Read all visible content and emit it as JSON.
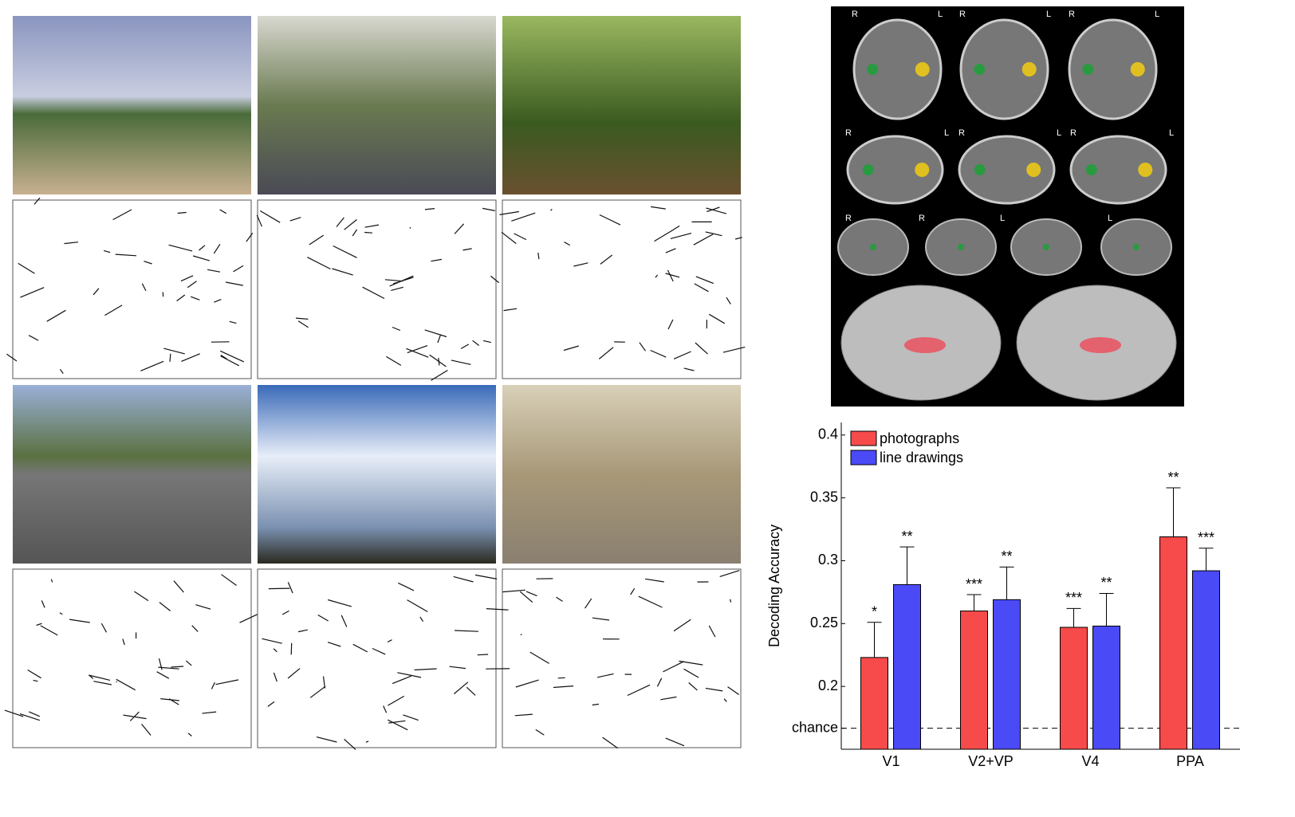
{
  "chart_data": {
    "type": "bar",
    "ylabel": "Decoding Accuracy",
    "categories": [
      "V1",
      "V2+VP",
      "V4",
      "PPA"
    ],
    "series": [
      {
        "name": "photographs",
        "color": "#f74a4a",
        "values": [
          0.223,
          0.26,
          0.247,
          0.319
        ],
        "errors": [
          0.028,
          0.013,
          0.015,
          0.039
        ],
        "significance": [
          "*",
          "***",
          "***",
          "**"
        ]
      },
      {
        "name": "line drawings",
        "color": "#4a4af7",
        "values": [
          0.281,
          0.269,
          0.248,
          0.292
        ],
        "errors": [
          0.03,
          0.026,
          0.026,
          0.018
        ],
        "significance": [
          "**",
          "**",
          "**",
          "***"
        ]
      }
    ],
    "ylim": [
      0.15,
      0.41
    ],
    "yticks": [
      {
        "value": 0.1667,
        "label": "chance"
      },
      0.2,
      0.25,
      0.3,
      0.35,
      0.4
    ],
    "chance_line": 0.1667,
    "legend": "upper left"
  },
  "brain_labels": [
    "R",
    "L",
    "R",
    "L",
    "R",
    "L",
    "R",
    "L",
    "R",
    "L",
    "R",
    "L",
    "R",
    "R",
    "L",
    "L"
  ]
}
